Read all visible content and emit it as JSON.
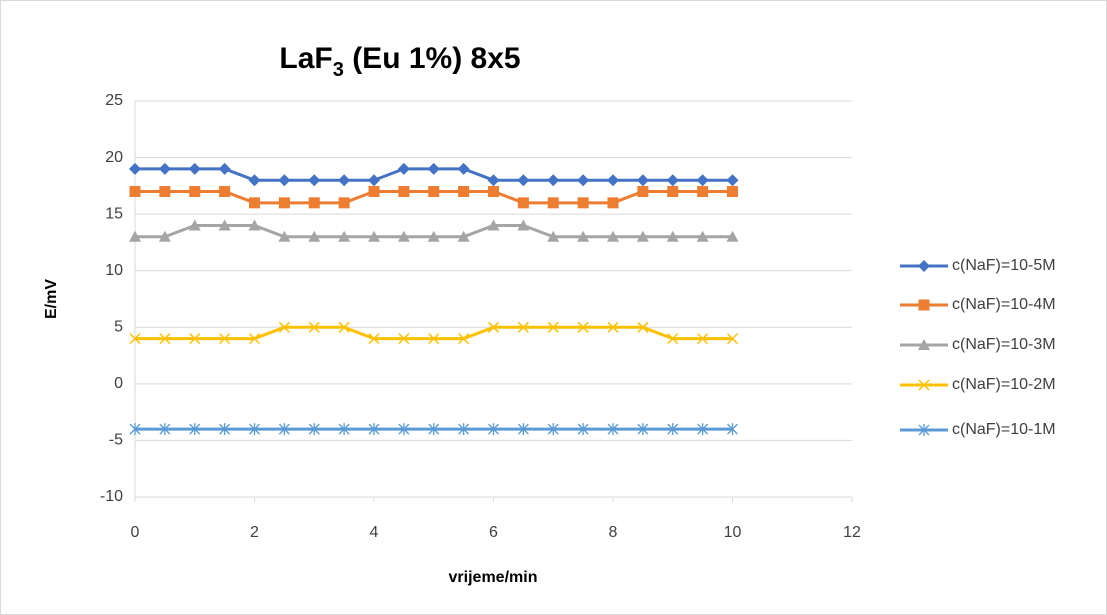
{
  "chart_data": {
    "type": "line",
    "title": "LaF3 (Eu 1%) 8x5",
    "xlabel": "vrijeme/min",
    "ylabel": "E/mV",
    "x": [
      0,
      0.5,
      1,
      1.5,
      2,
      2.5,
      3,
      3.5,
      4,
      4.5,
      5,
      5.5,
      6,
      6.5,
      7,
      7.5,
      8,
      8.5,
      9,
      9.5,
      10
    ],
    "series": [
      {
        "name": "c(NaF)=10-5M",
        "color": "#4472c4",
        "marker": "diamond",
        "values": [
          19,
          19,
          19,
          19,
          18,
          18,
          18,
          18,
          18,
          19,
          19,
          19,
          18,
          18,
          18,
          18,
          18,
          18,
          18,
          18,
          18
        ]
      },
      {
        "name": "c(NaF)=10-4M",
        "color": "#ed7d31",
        "marker": "square",
        "values": [
          17,
          17,
          17,
          17,
          16,
          16,
          16,
          16,
          17,
          17,
          17,
          17,
          17,
          16,
          16,
          16,
          16,
          17,
          17,
          17,
          17
        ]
      },
      {
        "name": "c(NaF)=10-3M",
        "color": "#a5a5a5",
        "marker": "triangle",
        "values": [
          13,
          13,
          14,
          14,
          14,
          13,
          13,
          13,
          13,
          13,
          13,
          13,
          14,
          14,
          13,
          13,
          13,
          13,
          13,
          13,
          13
        ]
      },
      {
        "name": "c(NaF)=10-2M",
        "color": "#ffc000",
        "marker": "x",
        "values": [
          4,
          4,
          4,
          4,
          4,
          5,
          5,
          5,
          4,
          4,
          4,
          4,
          5,
          5,
          5,
          5,
          5,
          5,
          4,
          4,
          4
        ]
      },
      {
        "name": "c(NaF)=10-1M",
        "color": "#5b9bd5",
        "marker": "star",
        "values": [
          -4,
          -4,
          -4,
          -4,
          -4,
          -4,
          -4,
          -4,
          -4,
          -4,
          -4,
          -4,
          -4,
          -4,
          -4,
          -4,
          -4,
          -4,
          -4,
          -4,
          -4
        ]
      }
    ],
    "xlim": [
      0,
      12
    ],
    "xticks": [
      0,
      2,
      4,
      6,
      8,
      10,
      12
    ],
    "ylim": [
      -10,
      25
    ],
    "yticks": [
      -10,
      -5,
      0,
      5,
      10,
      15,
      20,
      25
    ],
    "grid": true,
    "legend": "right"
  }
}
